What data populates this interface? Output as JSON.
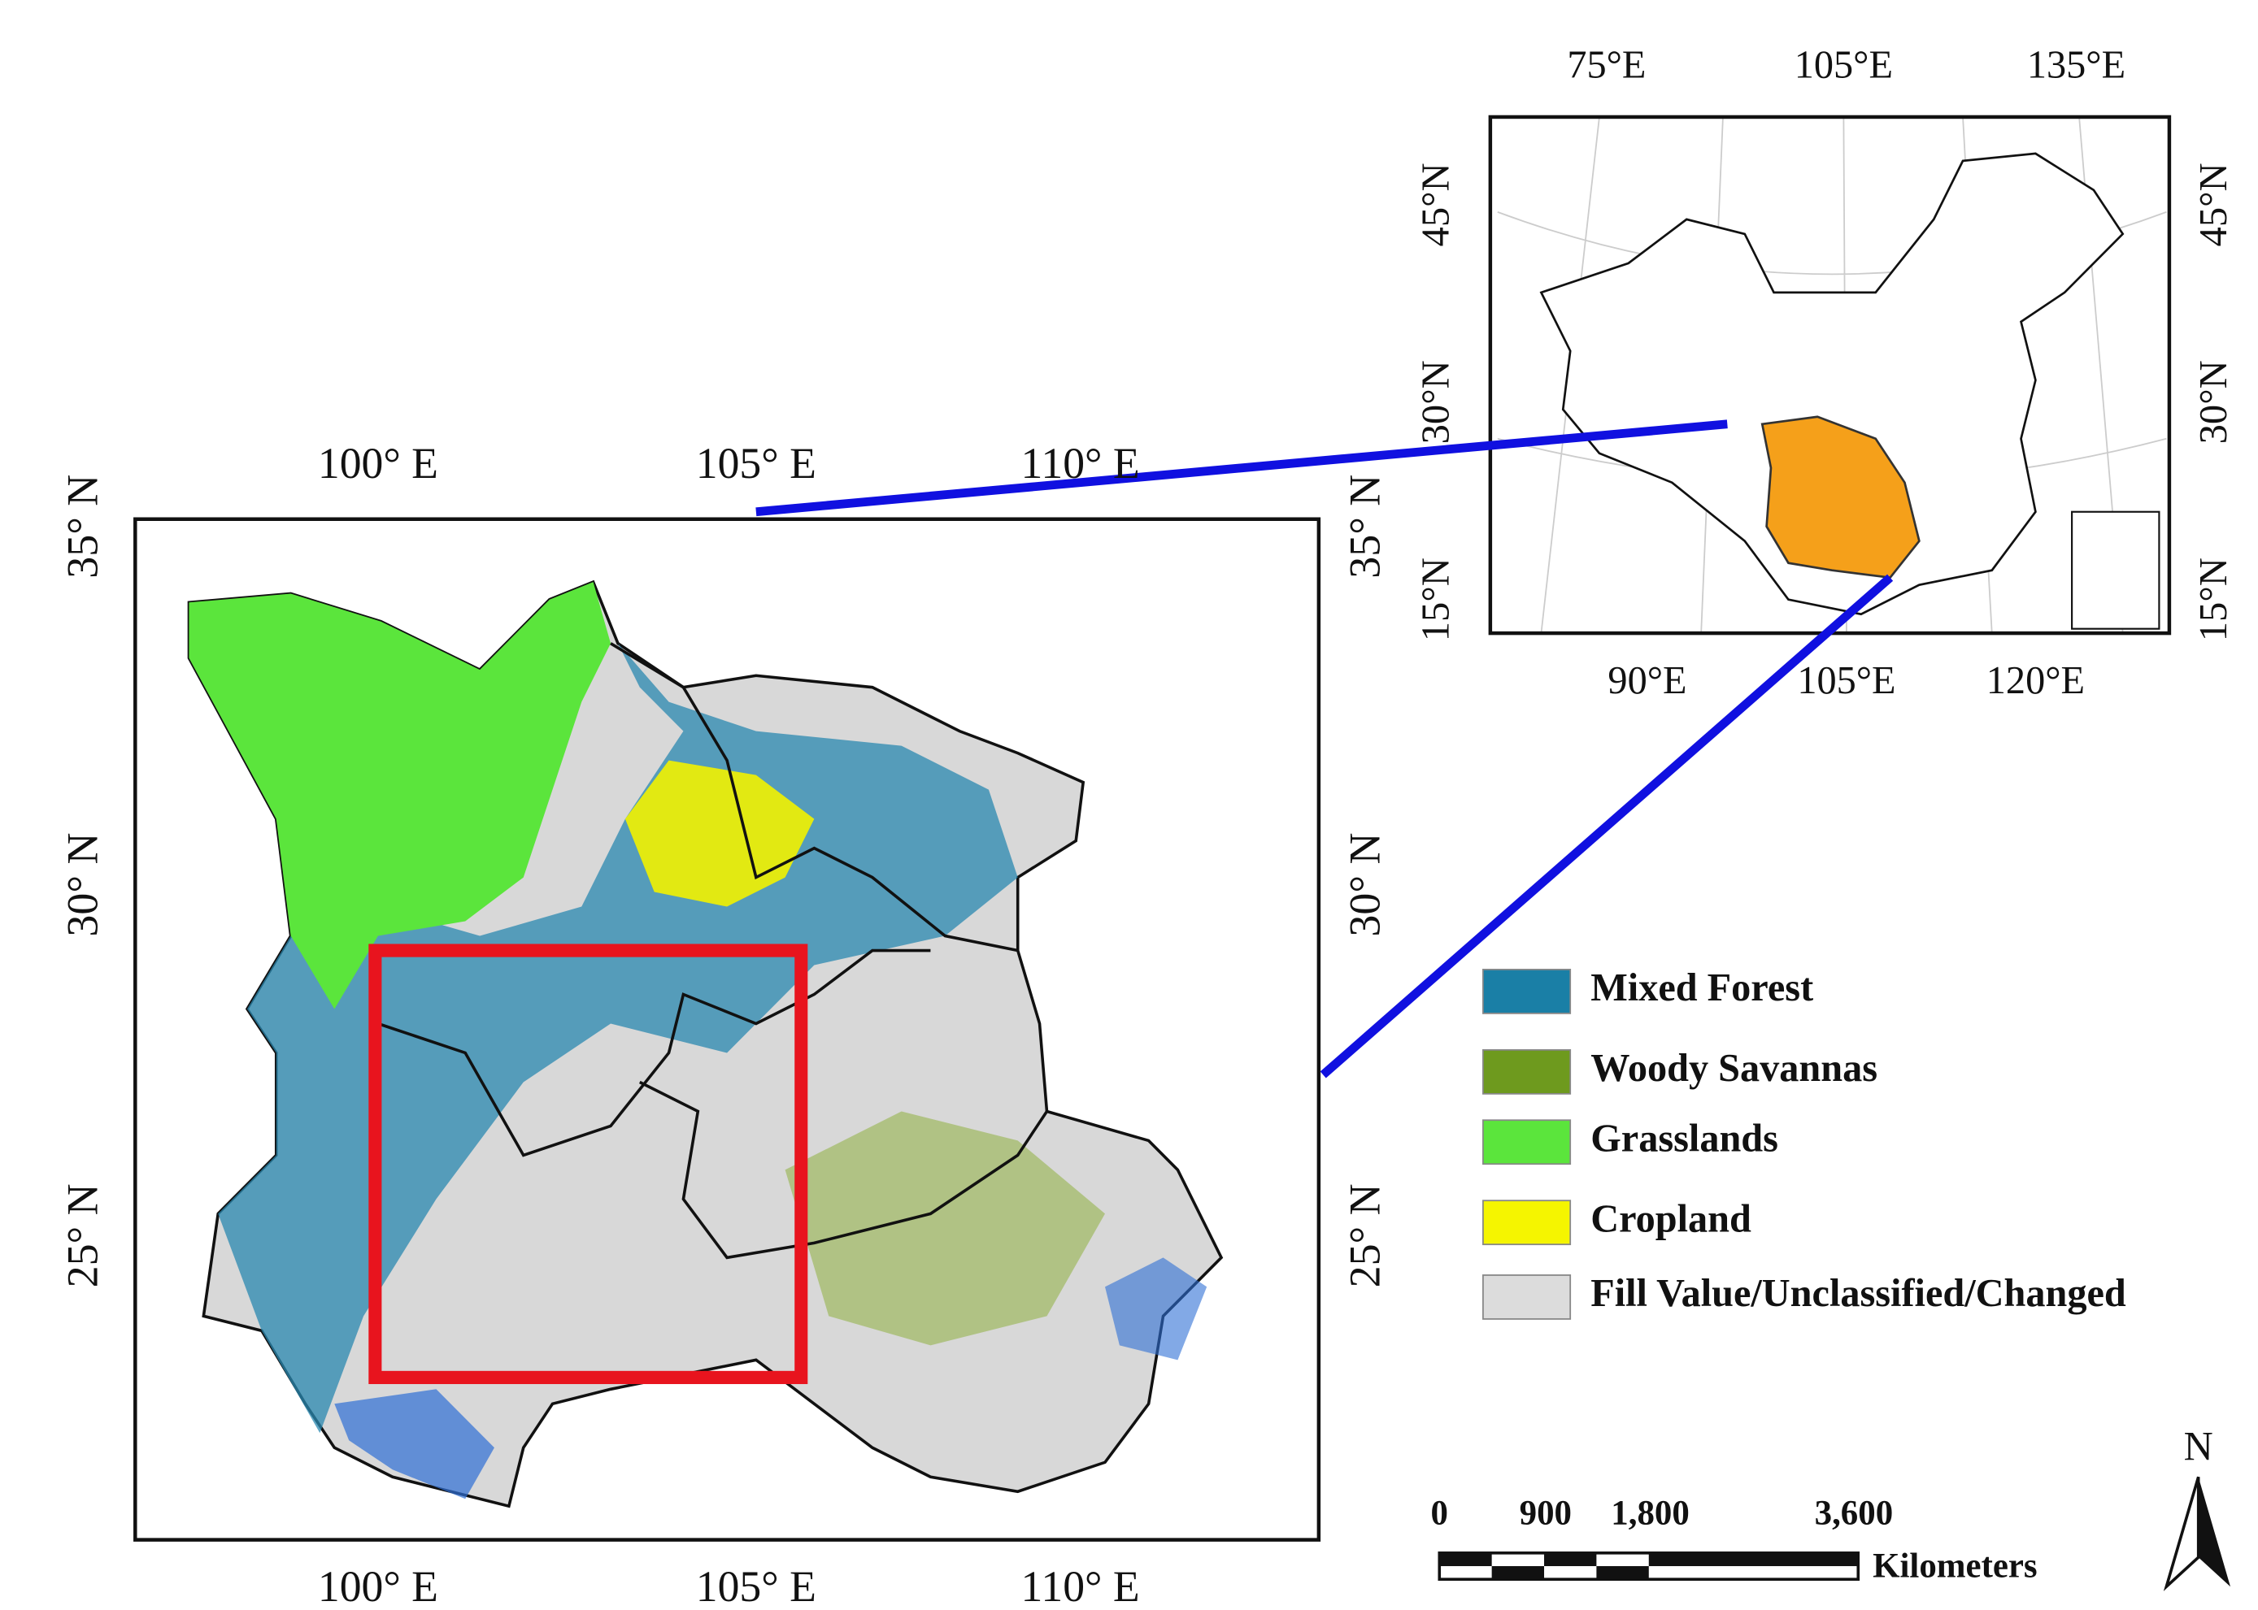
{
  "main_map": {
    "x_labels_top": [
      "100° E",
      "105° E",
      "110° E"
    ],
    "x_labels_bottom": [
      "100° E",
      "105° E",
      "110° E"
    ],
    "y_labels_left": [
      "35° N",
      "30° N",
      "25° N"
    ],
    "y_labels_right": [
      "35° N",
      "30° N",
      "25° N"
    ]
  },
  "inset_map": {
    "x_labels_top": [
      "75°E",
      "105°E",
      "135°E"
    ],
    "x_labels_bottom": [
      "90°E",
      "105°E",
      "120°E"
    ],
    "y_labels_left": [
      "45°N",
      "30°N",
      "15°N"
    ],
    "y_labels_right": [
      "45°N",
      "30°N",
      "15°N"
    ],
    "highlight_color": "#f5a01a"
  },
  "legend": [
    {
      "label": "Mixed Forest",
      "color": "#1a7fa6"
    },
    {
      "label": "Woody Savannas",
      "color": "#6e9a1e"
    },
    {
      "label": "Grasslands",
      "color": "#5be53c"
    },
    {
      "label": "Cropland",
      "color": "#f5f500"
    },
    {
      "label": "Fill Value/Unclassified/Changed",
      "color": "#dcdcdc"
    }
  ],
  "scale_bar": {
    "labels": [
      "0",
      "900",
      "1,800",
      "3,600"
    ],
    "unit": "Kilometers"
  },
  "north_arrow": "N"
}
